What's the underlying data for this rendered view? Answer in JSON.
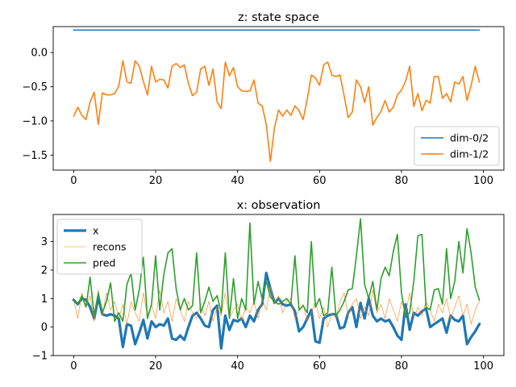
{
  "chart_data": [
    {
      "type": "line",
      "title": "z: state space",
      "xlabel": "",
      "ylabel": "",
      "xlim": [
        -5,
        105
      ],
      "ylim": [
        -1.72,
        0.38
      ],
      "xticks": [
        0,
        20,
        40,
        60,
        80,
        100
      ],
      "yticks": [
        0.0,
        -0.5,
        -1.0,
        -1.5
      ],
      "ytick_labels": [
        "0.0",
        "−0.5",
        "−1.0",
        "−1.5"
      ],
      "legend_position": "lower right",
      "grid": false,
      "x": [
        0,
        1,
        2,
        3,
        4,
        5,
        6,
        7,
        8,
        9,
        10,
        11,
        12,
        13,
        14,
        15,
        16,
        17,
        18,
        19,
        20,
        21,
        22,
        23,
        24,
        25,
        26,
        27,
        28,
        29,
        30,
        31,
        32,
        33,
        34,
        35,
        36,
        37,
        38,
        39,
        40,
        41,
        42,
        43,
        44,
        45,
        46,
        47,
        48,
        49,
        50,
        51,
        52,
        53,
        54,
        55,
        56,
        57,
        58,
        59,
        60,
        61,
        62,
        63,
        64,
        65,
        66,
        67,
        68,
        69,
        70,
        71,
        72,
        73,
        74,
        75,
        76,
        77,
        78,
        79,
        80,
        81,
        82,
        83,
        84,
        85,
        86,
        87,
        88,
        89,
        90,
        91,
        92,
        93,
        94,
        95,
        96,
        97,
        98,
        99
      ],
      "series": [
        {
          "name": "dim-0/2",
          "color": "#1f77b4",
          "linewidth": 1.6,
          "values": [
            0.33,
            0.33,
            0.33,
            0.33,
            0.33,
            0.33,
            0.33,
            0.33,
            0.33,
            0.33,
            0.33,
            0.33,
            0.33,
            0.33,
            0.33,
            0.33,
            0.33,
            0.33,
            0.33,
            0.33,
            0.33,
            0.33,
            0.33,
            0.33,
            0.33,
            0.33,
            0.33,
            0.33,
            0.33,
            0.33,
            0.33,
            0.33,
            0.33,
            0.33,
            0.33,
            0.33,
            0.33,
            0.33,
            0.33,
            0.33,
            0.33,
            0.33,
            0.33,
            0.33,
            0.33,
            0.33,
            0.33,
            0.33,
            0.33,
            0.33,
            0.33,
            0.33,
            0.33,
            0.33,
            0.33,
            0.33,
            0.33,
            0.33,
            0.33,
            0.33,
            0.33,
            0.33,
            0.33,
            0.33,
            0.33,
            0.33,
            0.33,
            0.33,
            0.33,
            0.33,
            0.33,
            0.33,
            0.33,
            0.33,
            0.33,
            0.33,
            0.33,
            0.33,
            0.33,
            0.33,
            0.33,
            0.33,
            0.33,
            0.33,
            0.33,
            0.33,
            0.33,
            0.33,
            0.33,
            0.33,
            0.33,
            0.33,
            0.33,
            0.33,
            0.33,
            0.33,
            0.33,
            0.33,
            0.33,
            0.33
          ]
        },
        {
          "name": "dim-1/2",
          "color": "#ff7f0e",
          "linewidth": 1.6,
          "values": [
            -0.93,
            -0.8,
            -0.92,
            -0.98,
            -0.72,
            -0.58,
            -1.05,
            -0.59,
            -0.62,
            -0.62,
            -0.6,
            -0.49,
            -0.12,
            -0.43,
            -0.45,
            -0.12,
            -0.2,
            -0.42,
            -0.62,
            -0.2,
            -0.43,
            -0.39,
            -0.4,
            -0.52,
            -0.2,
            -0.16,
            -0.22,
            -0.18,
            -0.45,
            -0.63,
            -0.58,
            -0.24,
            -0.2,
            -0.48,
            -0.24,
            -0.72,
            -0.82,
            -0.14,
            -0.34,
            -0.22,
            -0.5,
            -0.56,
            -0.57,
            -0.56,
            -0.4,
            -0.74,
            -0.78,
            -1.05,
            -1.59,
            -1.1,
            -0.84,
            -0.93,
            -0.84,
            -0.92,
            -0.78,
            -0.85,
            -0.98,
            -0.68,
            -0.33,
            -0.37,
            -0.48,
            -0.18,
            -0.14,
            -0.33,
            -0.35,
            -0.33,
            -0.63,
            -0.95,
            -0.87,
            -0.4,
            -0.5,
            -0.73,
            -0.5,
            -1.06,
            -0.95,
            -0.86,
            -0.7,
            -0.87,
            -0.8,
            -0.62,
            -0.55,
            -0.42,
            -0.2,
            -0.79,
            -0.6,
            -0.85,
            -0.7,
            -0.74,
            -0.35,
            -0.35,
            -0.67,
            -0.6,
            -0.72,
            -0.43,
            -0.46,
            -0.35,
            -0.7,
            -0.48,
            -0.2,
            -0.43
          ]
        }
      ]
    },
    {
      "type": "line",
      "title": "x: observation",
      "xlabel": "",
      "ylabel": "",
      "xlim": [
        -5,
        105
      ],
      "ylim": [
        -1,
        3.95
      ],
      "xticks": [
        0,
        20,
        40,
        60,
        80,
        100
      ],
      "yticks": [
        -1,
        0,
        1,
        2,
        3
      ],
      "ytick_labels": [
        "−1",
        "0",
        "1",
        "2",
        "3"
      ],
      "legend_position": "upper left",
      "grid": false,
      "x": [
        0,
        1,
        2,
        3,
        4,
        5,
        6,
        7,
        8,
        9,
        10,
        11,
        12,
        13,
        14,
        15,
        16,
        17,
        18,
        19,
        20,
        21,
        22,
        23,
        24,
        25,
        26,
        27,
        28,
        29,
        30,
        31,
        32,
        33,
        34,
        35,
        36,
        37,
        38,
        39,
        40,
        41,
        42,
        43,
        44,
        45,
        46,
        47,
        48,
        49,
        50,
        51,
        52,
        53,
        54,
        55,
        56,
        57,
        58,
        59,
        60,
        61,
        62,
        63,
        64,
        65,
        66,
        67,
        68,
        69,
        70,
        71,
        72,
        73,
        74,
        75,
        76,
        77,
        78,
        79,
        80,
        81,
        82,
        83,
        84,
        85,
        86,
        87,
        88,
        89,
        90,
        91,
        92,
        93,
        94,
        95,
        96,
        97,
        98,
        99
      ],
      "series": [
        {
          "name": "x",
          "color": "#1f77b4",
          "linewidth": 3.2,
          "values": [
            0.95,
            0.8,
            1.0,
            0.95,
            0.7,
            0.3,
            1.05,
            0.45,
            0.4,
            0.45,
            0.4,
            0.3,
            -0.7,
            0.1,
            0.05,
            -0.6,
            -0.2,
            0.25,
            -0.4,
            0.2,
            0.0,
            0.1,
            0.05,
            0.3,
            -0.4,
            -0.45,
            -0.3,
            -0.45,
            0.0,
            0.4,
            0.5,
            0.3,
            0.05,
            0.0,
            0.6,
            0.75,
            -0.75,
            0.4,
            -0.1,
            0.25,
            0.2,
            0.3,
            0.0,
            0.4,
            0.2,
            0.6,
            0.8,
            1.9,
            1.35,
            0.85,
            1.0,
            0.8,
            0.75,
            0.8,
            0.55,
            -0.15,
            0.0,
            0.3,
            0.6,
            -0.5,
            -0.55,
            0.3,
            0.4,
            0.45,
            0.45,
            -0.05,
            0.0,
            0.5,
            0.7,
            0.0,
            0.85,
            0.3,
            1.0,
            0.4,
            0.2,
            0.3,
            0.2,
            0.25,
            0.0,
            -0.3,
            -0.45,
            0.8,
            -0.1,
            0.5,
            0.4,
            0.55,
            0.65,
            0.0,
            0.1,
            0.2,
            0.3,
            -0.2,
            0.4,
            0.25,
            0.2,
            0.4,
            -0.6,
            -0.35,
            -0.15,
            0.1
          ]
        },
        {
          "name": "recons",
          "color": "#ff7f0e",
          "linewidth": 0.6,
          "values": [
            0.95,
            0.3,
            1.2,
            0.7,
            1.1,
            0.2,
            1.3,
            0.4,
            1.2,
            0.6,
            0.9,
            0.3,
            0.8,
            0.1,
            0.9,
            0.5,
            0.2,
            1.2,
            0.4,
            0.8,
            0.3,
            1.3,
            0.5,
            0.9,
            0.2,
            1.0,
            0.6,
            0.2,
            0.9,
            0.5,
            0.3,
            0.8,
            0.4,
            0.9,
            0.2,
            0.7,
            0.4,
            1.2,
            0.3,
            0.6,
            0.8,
            0.2,
            0.7,
            0.5,
            0.9,
            0.3,
            1.0,
            0.6,
            1.4,
            0.8,
            1.1,
            0.5,
            0.9,
            1.0,
            0.3,
            0.6,
            0.8,
            0.2,
            0.5,
            0.9,
            0.3,
            0.7,
            0.0,
            0.5,
            0.3,
            0.9,
            1.2,
            0.4,
            0.8,
            1.0,
            0.3,
            0.7,
            0.4,
            1.3,
            0.5,
            0.8,
            0.3,
            1.0,
            0.6,
            0.2,
            0.9,
            0.5,
            1.2,
            0.3,
            0.7,
            0.4,
            0.9,
            0.6,
            0.2,
            0.8,
            0.5,
            1.0,
            0.3,
            0.7,
            1.1,
            0.4,
            0.8,
            0.1,
            0.6,
            0.9
          ]
        },
        {
          "name": "pred",
          "color": "#2ca02c",
          "linewidth": 1.6,
          "values": [
            0.95,
            0.8,
            1.1,
            0.7,
            1.75,
            0.4,
            1.2,
            0.5,
            0.9,
            1.55,
            0.2,
            0.5,
            0.2,
            1.5,
            1.9,
            0.6,
            1.3,
            2.45,
            0.3,
            0.8,
            2.5,
            0.6,
            1.85,
            2.6,
            2.75,
            1.35,
            0.6,
            1.0,
            0.6,
            0.75,
            2.6,
            0.5,
            0.9,
            1.4,
            0.9,
            1.1,
            0.5,
            2.6,
            0.3,
            1.7,
            0.3,
            1.0,
            0.6,
            3.65,
            0.8,
            1.6,
            1.0,
            1.6,
            1.05,
            0.9,
            0.8,
            0.9,
            1.0,
            0.8,
            2.5,
            0.6,
            0.75,
            0.5,
            3.0,
            0.7,
            1.0,
            0.4,
            0.5,
            2.1,
            0.4,
            0.6,
            0.9,
            1.3,
            1.35,
            2.5,
            3.8,
            1.5,
            1.0,
            1.6,
            0.6,
            1.7,
            2.1,
            1.8,
            2.65,
            3.25,
            1.2,
            0.35,
            0.5,
            1.6,
            3.2,
            3.25,
            0.7,
            0.6,
            1.3,
            1.35,
            0.8,
            2.75,
            1.0,
            1.6,
            3.0,
            1.9,
            3.45,
            2.6,
            1.4,
            0.95
          ]
        }
      ]
    }
  ]
}
